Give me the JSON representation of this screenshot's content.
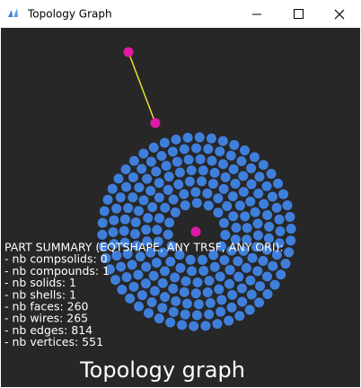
{
  "window": {
    "title": "Topology Graph"
  },
  "summary": {
    "lines": [
      "PART SUMMARY (EQTSHAPE, ANY TRSF, ANY ORI):",
      "- nb compsolids: 0",
      "- nb compounds: 1",
      "- nb solids: 1",
      "- nb shells: 1",
      "- nb faces: 260",
      "- nb wires: 265",
      "- nb edges: 814",
      "- nb vertices: 551"
    ]
  },
  "caption": "Topology graph"
}
